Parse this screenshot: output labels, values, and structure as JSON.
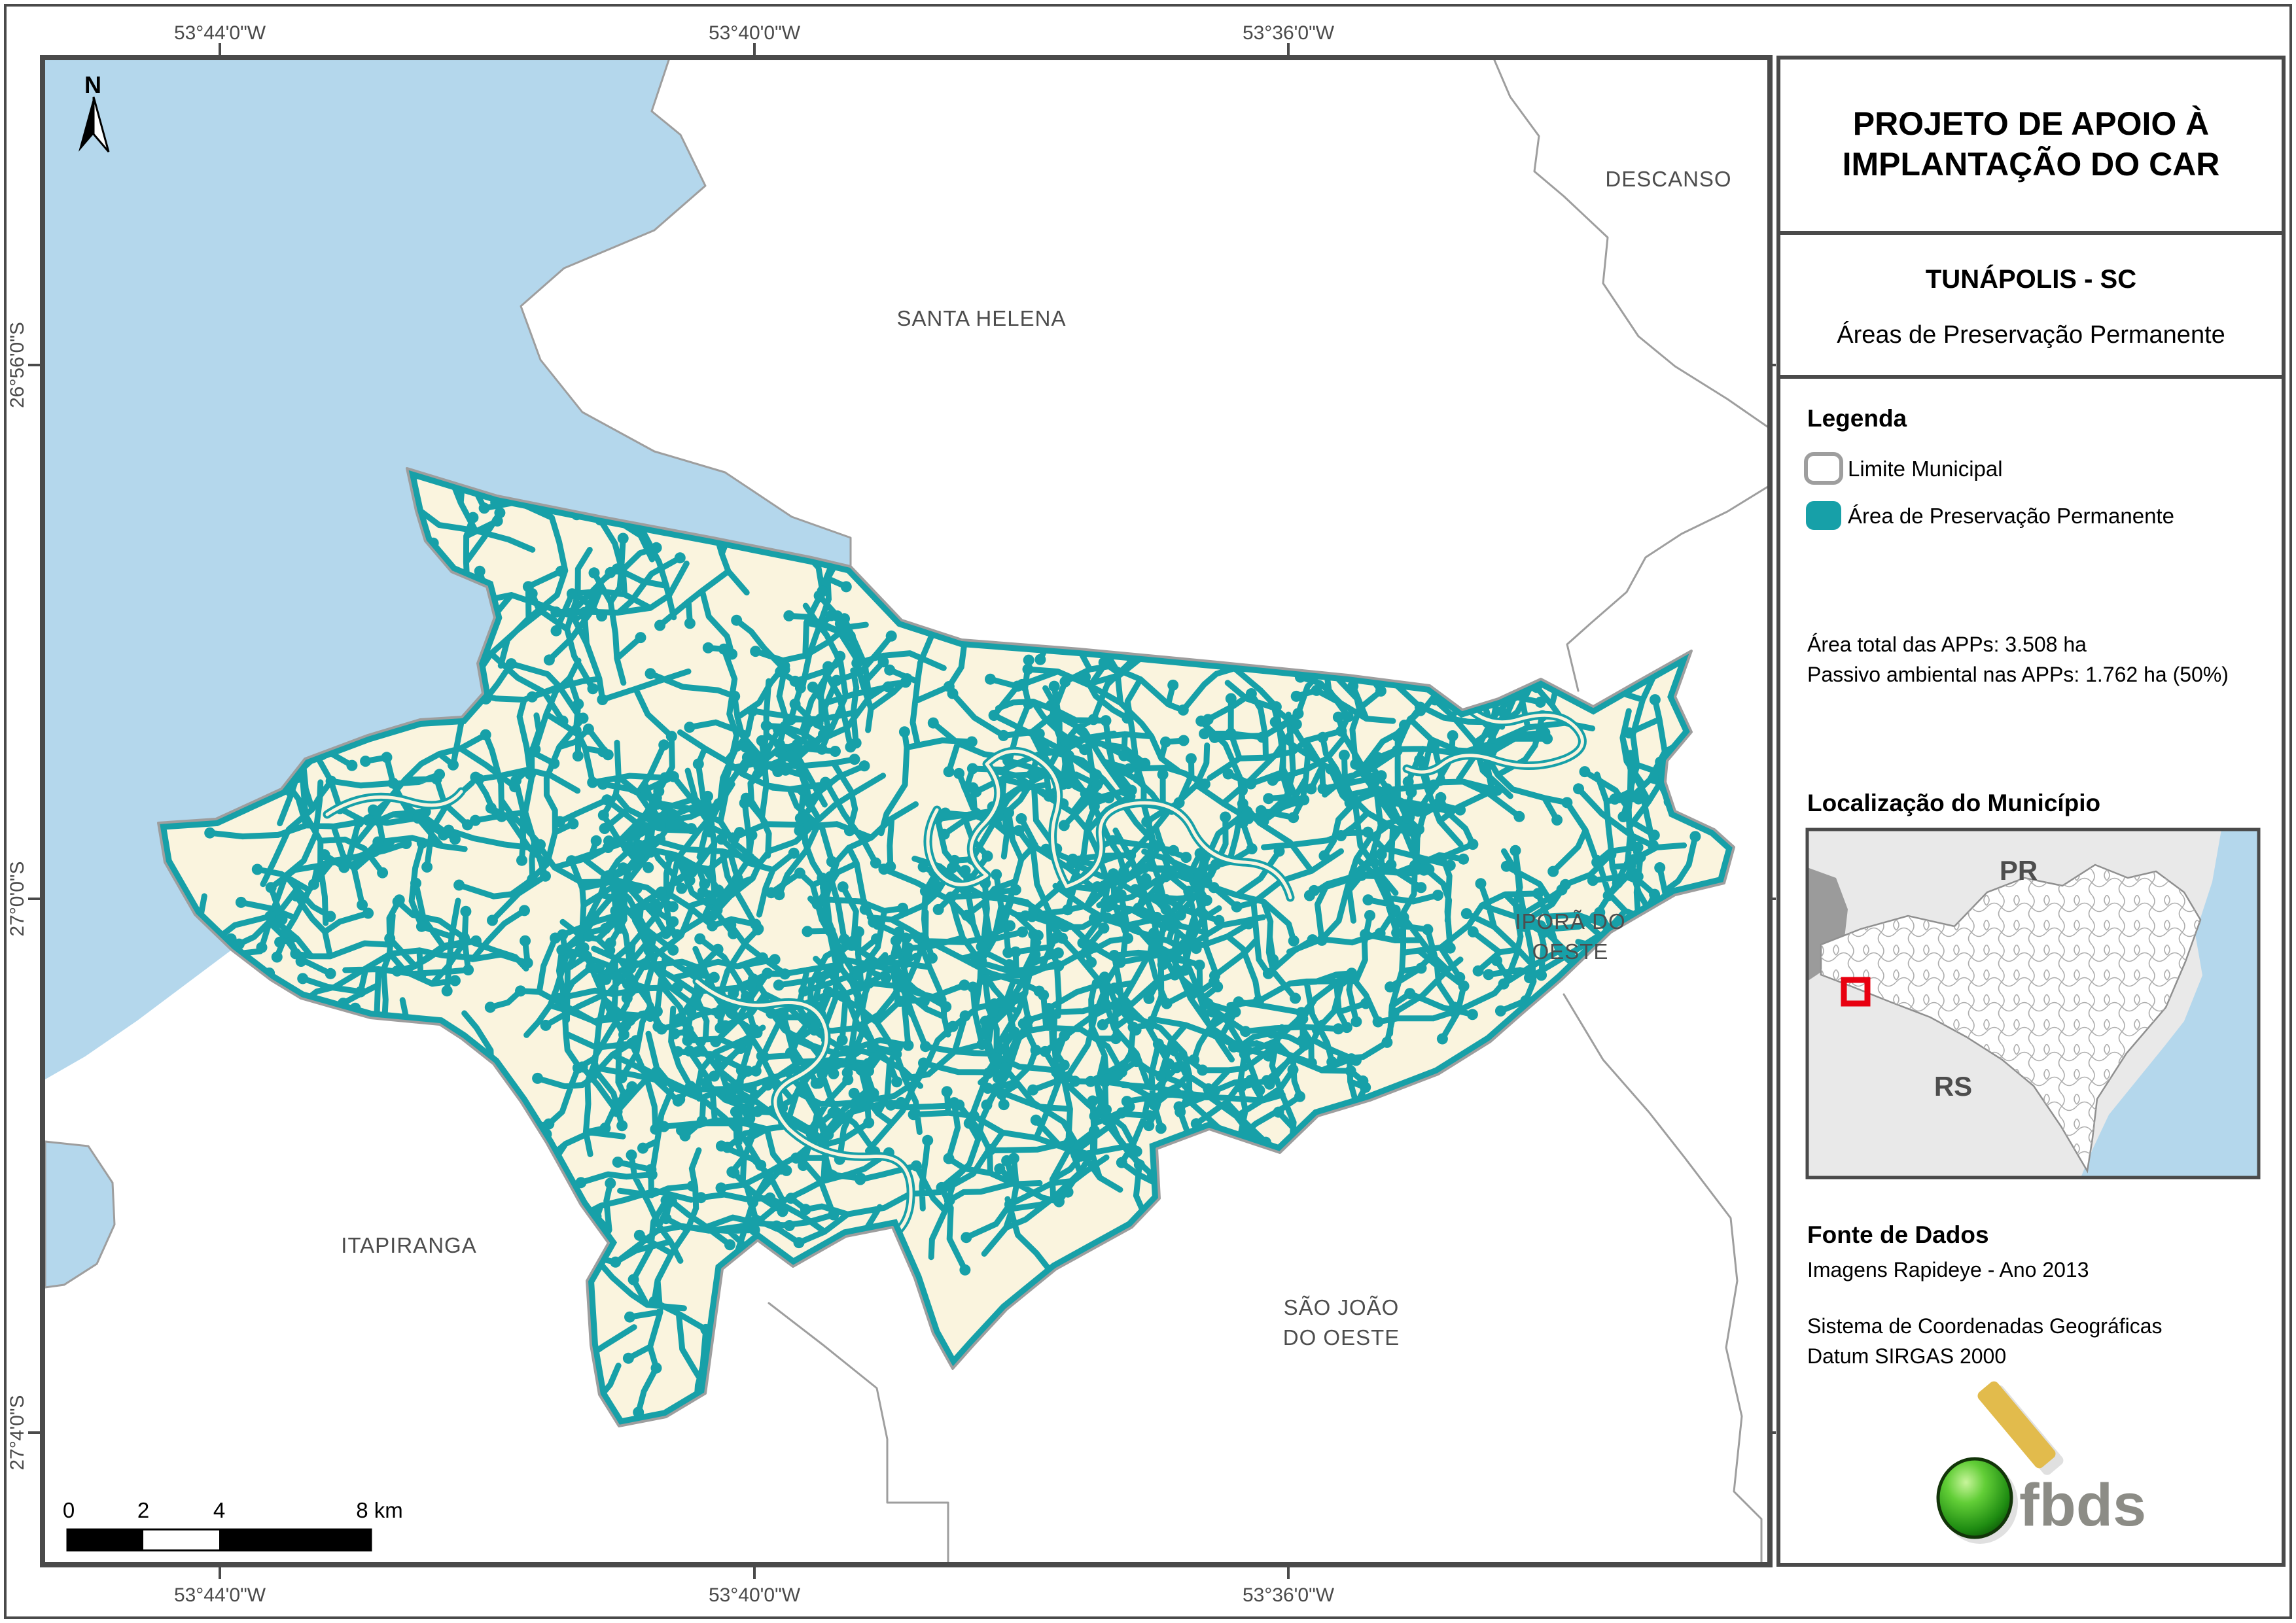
{
  "panel": {
    "title_line1": "PROJETO DE APOIO À",
    "title_line2": "IMPLANTAÇÃO DO CAR",
    "municipality_title": "TUNÁPOLIS - SC",
    "theme_title": "Áreas de Preservação Permanente",
    "legend": {
      "heading": "Legenda",
      "items": [
        {
          "label": "Limite Municipal",
          "swatch": "white-rounded-rect-gray-border"
        },
        {
          "label": "Área de Preservação Permanente",
          "swatch": "teal-rounded-rect"
        }
      ]
    },
    "stats": {
      "line1": "Área total das APPs: 3.508 ha",
      "line2": "Passivo ambiental nas APPs: 1.762 ha (50%)"
    },
    "localization": {
      "heading": "Localização do Município",
      "state_label_pr": "PR",
      "state_label_rs": "RS"
    },
    "source": {
      "heading": "Fonte de Dados",
      "line1": "Imagens Rapideye - Ano 2013",
      "line2": "Sistema de Coordenadas Geográficas",
      "line3": "Datum SIRGAS 2000"
    },
    "logo_text": "fbds"
  },
  "map": {
    "north_label": "N",
    "labels": {
      "descanso": "DESCANSO",
      "santa_helena": "SANTA HELENA",
      "ipora_line1": "IPORÃ DO",
      "ipora_line2": "OESTE",
      "itapiranga": "ITAPIRANGA",
      "sao_joao_line1": "SÃO JOÃO",
      "sao_joao_line2": "DO OESTE"
    },
    "coordinates": {
      "top": [
        "53°44'0\"W",
        "53°40'0\"W",
        "53°36'0\"W"
      ],
      "bottom": [
        "53°44'0\"W",
        "53°40'0\"W",
        "53°36'0\"W"
      ],
      "left": [
        "26°56'0\"S",
        "27°0'0\"S",
        "27°4'0\"S"
      ]
    },
    "scalebar": {
      "labels": [
        "0",
        "2",
        "4",
        "8 km"
      ]
    }
  },
  "colors": {
    "app_teal": "#17a0a8",
    "water_blue": "#b4d7ec",
    "land_cream": "#faf4de",
    "municipal_boundary_gray": "#9e9e9e",
    "frame_dark_gray": "#4a4a4a",
    "marker_red": "#e80010",
    "logo_yellow": "#e2bb4c",
    "logo_green": "#3aa520"
  }
}
